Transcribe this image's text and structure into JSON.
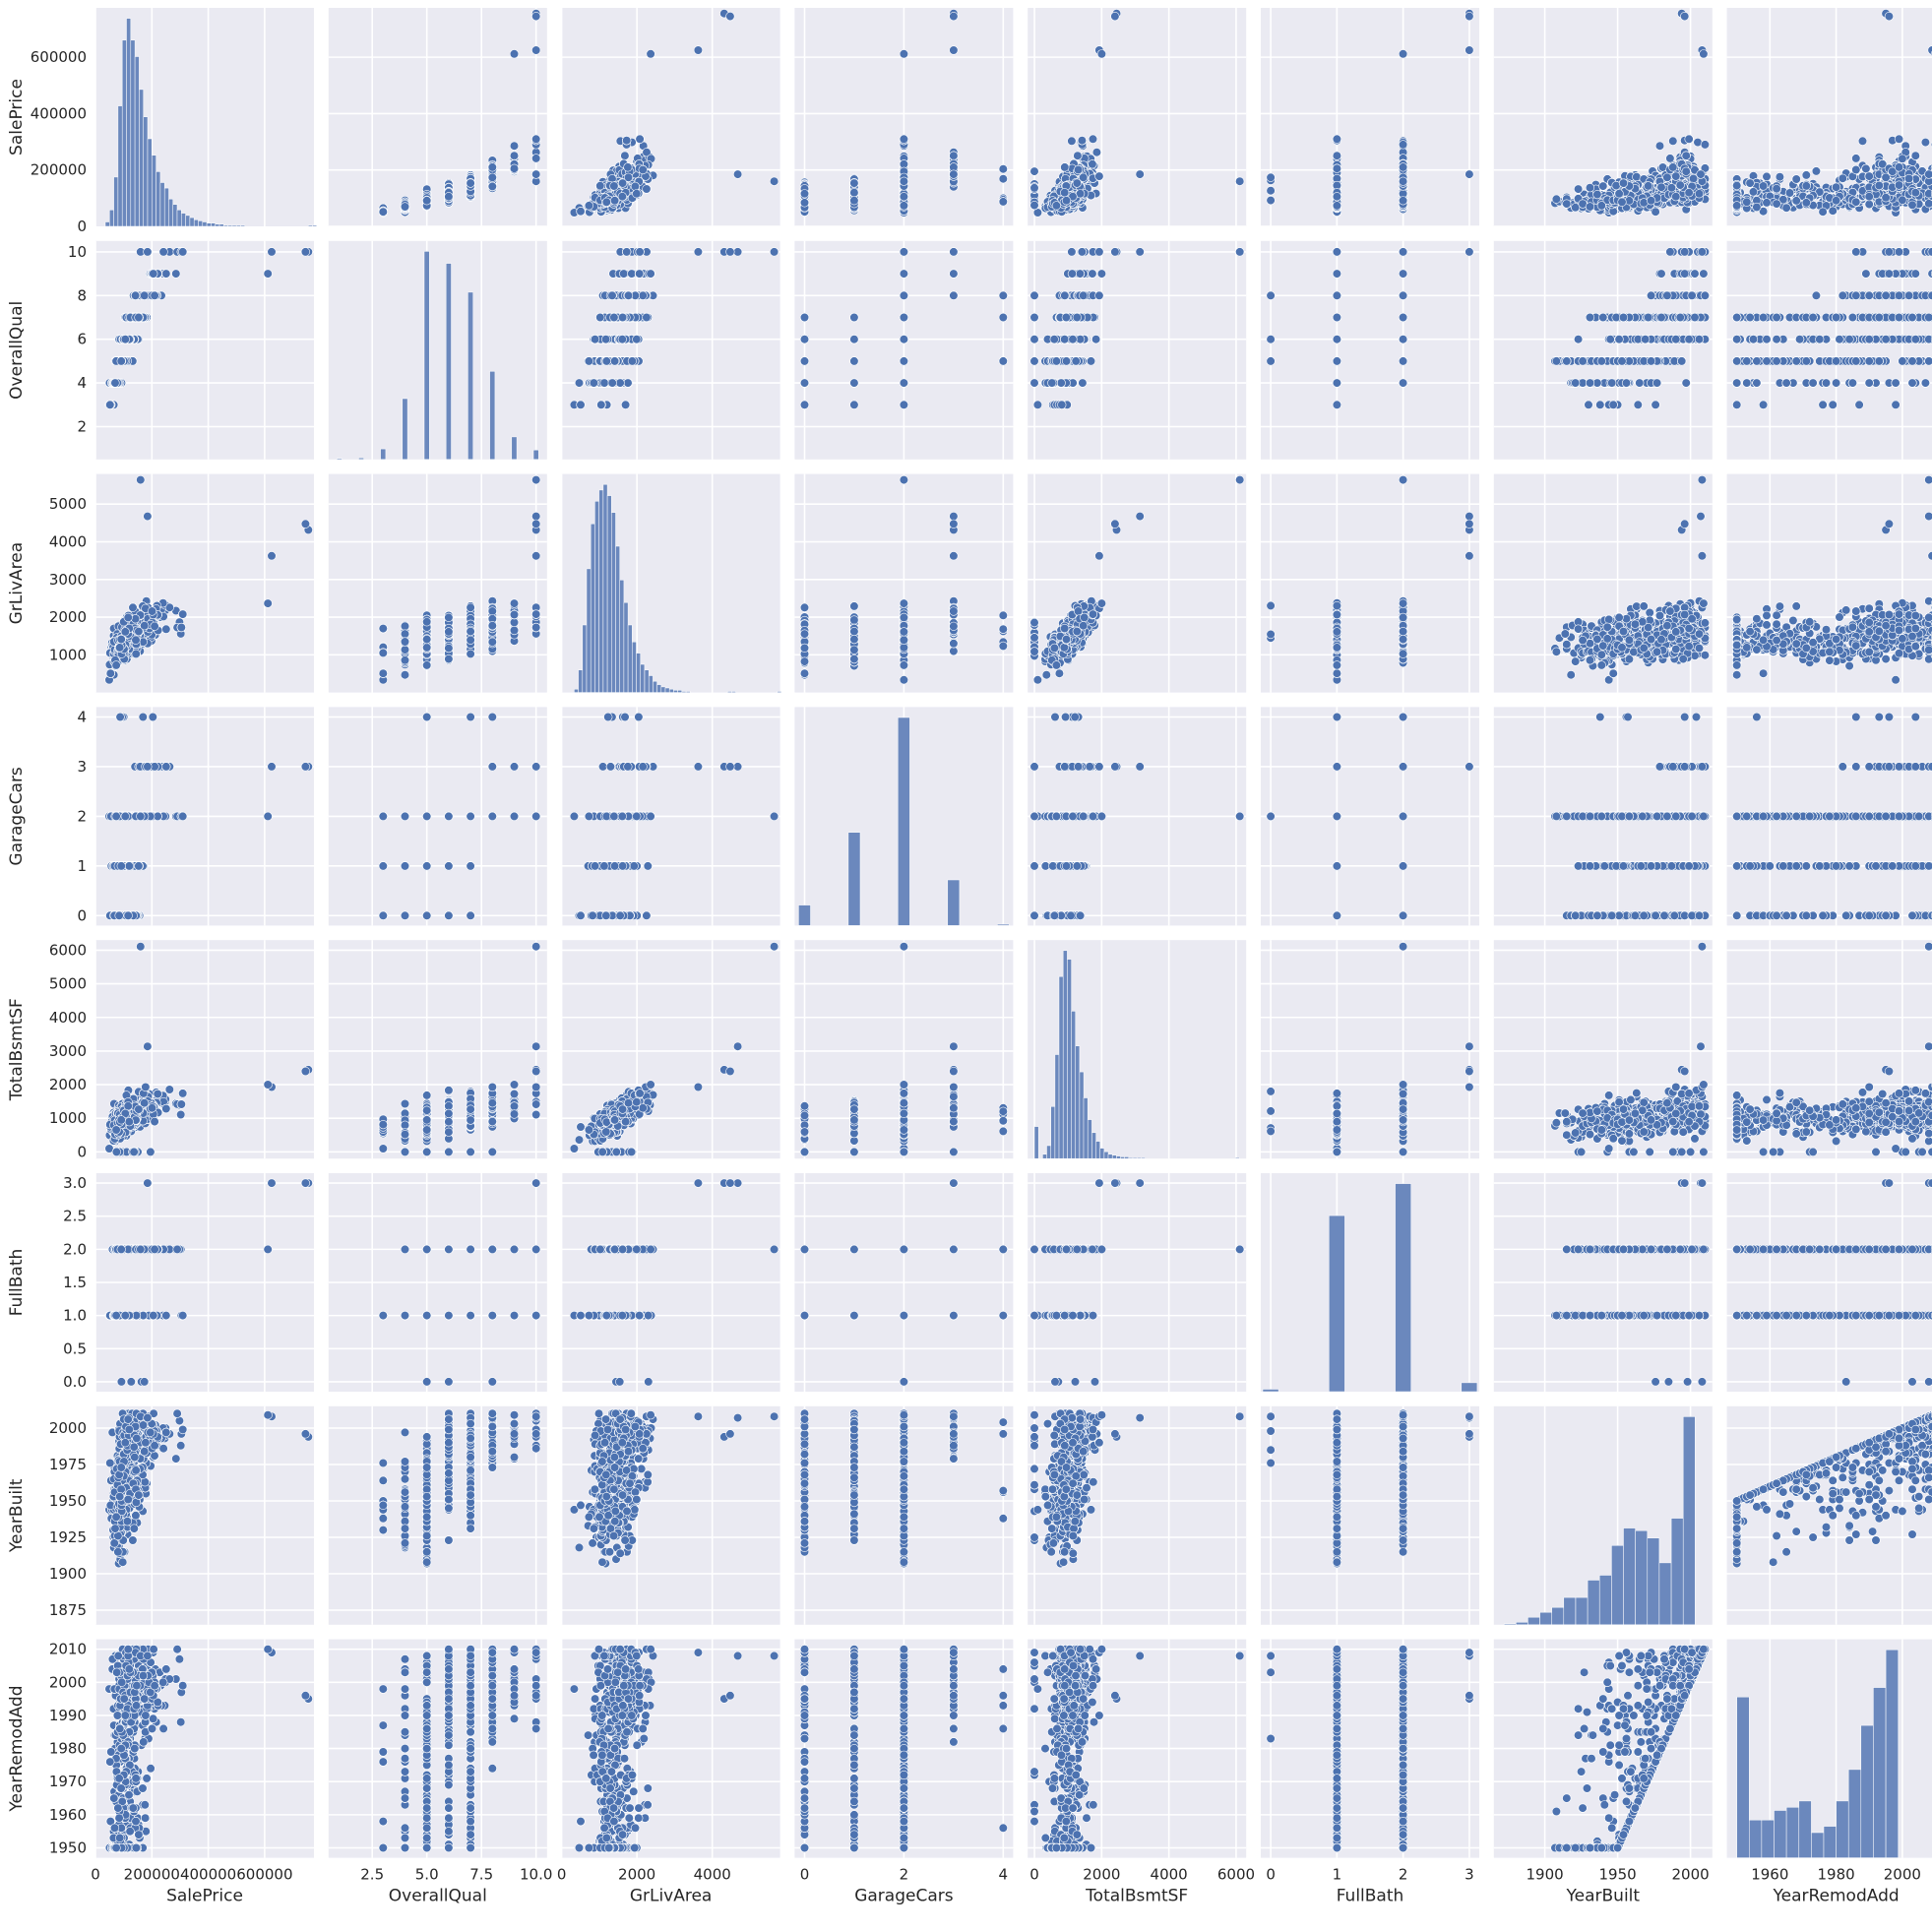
{
  "chart_data": {
    "type": "scatter",
    "kind": "pairplot",
    "style": {
      "background": "#eaeaf2",
      "grid_color": "#ffffff",
      "marker_color": "#4c72b0",
      "marker_edge": "#ffffff",
      "bar_color": "#6b88bd",
      "grid": true
    },
    "variables": [
      {
        "name": "SalePrice",
        "range": [
          0,
          775000
        ],
        "ticks": [
          0,
          200000,
          400000,
          600000
        ],
        "tick_labels": [
          "0",
          "200000",
          "400000",
          "600000"
        ]
      },
      {
        "name": "OverallQual",
        "range": [
          0.5,
          10.5
        ],
        "ticks": [
          2,
          4,
          6,
          8,
          10
        ],
        "tick_labels": [
          "2",
          "4",
          "6",
          "8",
          "10"
        ],
        "x_ticks": [
          2.5,
          5,
          7.5,
          10
        ],
        "x_tick_labels": [
          "2.5",
          "5.0",
          "7.5",
          "10.0"
        ]
      },
      {
        "name": "GrLivArea",
        "range": [
          0,
          5800
        ],
        "ticks": [
          1000,
          2000,
          3000,
          4000,
          5000
        ],
        "tick_labels": [
          "1000",
          "2000",
          "3000",
          "4000",
          "5000"
        ],
        "x_ticks": [
          0,
          2000,
          4000
        ],
        "x_tick_labels": [
          "0",
          "2000",
          "4000"
        ]
      },
      {
        "name": "GarageCars",
        "range": [
          -0.2,
          4.2
        ],
        "ticks": [
          0,
          1,
          2,
          3,
          4
        ],
        "tick_labels": [
          "0",
          "1",
          "2",
          "3",
          "4"
        ],
        "x_ticks": [
          0,
          2,
          4
        ],
        "x_tick_labels": [
          "0",
          "2",
          "4"
        ]
      },
      {
        "name": "TotalBsmtSF",
        "range": [
          -200,
          6300
        ],
        "ticks": [
          0,
          1000,
          2000,
          3000,
          4000,
          5000,
          6000
        ],
        "tick_labels": [
          "0",
          "1000",
          "2000",
          "3000",
          "4000",
          "5000",
          "6000"
        ],
        "x_ticks": [
          0,
          2000,
          4000,
          6000
        ],
        "x_tick_labels": [
          "0",
          "2000",
          "4000",
          "6000"
        ]
      },
      {
        "name": "FullBath",
        "range": [
          -0.15,
          3.15
        ],
        "ticks": [
          0,
          0.5,
          1,
          1.5,
          2,
          2.5,
          3
        ],
        "tick_labels": [
          "0.0",
          "0.5",
          "1.0",
          "1.5",
          "2.0",
          "2.5",
          "3.0"
        ],
        "x_ticks": [
          0,
          1,
          2,
          3
        ],
        "x_tick_labels": [
          "0",
          "1",
          "2",
          "3"
        ]
      },
      {
        "name": "YearBuilt",
        "range": [
          1865,
          2015
        ],
        "ticks": [
          1875,
          1900,
          1925,
          1950,
          1975,
          2000
        ],
        "tick_labels": [
          "1875",
          "1900",
          "1925",
          "1950",
          "1975",
          "2000"
        ],
        "x_ticks": [
          1900,
          1950,
          2000
        ],
        "x_tick_labels": [
          "1900",
          "1950",
          "2000"
        ]
      },
      {
        "name": "YearRemodAdd",
        "range": [
          1947,
          2013
        ],
        "ticks": [
          1950,
          1960,
          1970,
          1980,
          1990,
          2000,
          2010
        ],
        "tick_labels": [
          "1950",
          "1960",
          "1970",
          "1980",
          "1990",
          "2000",
          "2010"
        ],
        "x_ticks": [
          1960,
          1980,
          2000
        ],
        "x_tick_labels": [
          "1960",
          "1980",
          "2000"
        ]
      }
    ],
    "histograms": {
      "SalePrice": {
        "edges_start": 34900,
        "bin_width": 15000,
        "counts": [
          4,
          15,
          45,
          110,
          170,
          190,
          170,
          155,
          125,
          100,
          80,
          65,
          50,
          40,
          35,
          25,
          20,
          15,
          12,
          10,
          8,
          6,
          5,
          4,
          3,
          3,
          2,
          2,
          1,
          1,
          1,
          1,
          1,
          0,
          0,
          0,
          0,
          0,
          0,
          0,
          0,
          0,
          0,
          0,
          0,
          0,
          0,
          0,
          1,
          1
        ]
      },
      "OverallQual": {
        "categories": [
          1,
          2,
          3,
          4,
          5,
          6,
          7,
          8,
          9,
          10
        ],
        "counts": [
          2,
          3,
          20,
          116,
          397,
          374,
          319,
          168,
          43,
          18
        ]
      },
      "GrLivArea": {
        "edges_start": 334,
        "bin_width": 110,
        "counts": [
          3,
          20,
          60,
          110,
          150,
          170,
          180,
          185,
          175,
          160,
          130,
          100,
          80,
          60,
          45,
          35,
          25,
          20,
          15,
          10,
          7,
          5,
          4,
          3,
          2,
          2,
          1,
          1,
          0,
          0,
          0,
          0,
          0,
          0,
          0,
          0,
          0,
          1,
          1,
          0,
          0,
          0,
          0,
          0,
          0,
          0,
          0,
          0,
          0,
          1
        ]
      },
      "GarageCars": {
        "categories": [
          0,
          1,
          2,
          3,
          4
        ],
        "counts": [
          81,
          369,
          824,
          181,
          5
        ]
      },
      "TotalBsmtSF": {
        "edges_start": 0,
        "bin_width": 122,
        "counts": [
          37,
          0,
          5,
          15,
          60,
          120,
          210,
          240,
          230,
          170,
          130,
          100,
          70,
          45,
          30,
          20,
          12,
          8,
          5,
          4,
          3,
          2,
          2,
          1,
          1,
          1,
          1,
          0,
          0,
          0,
          0,
          0,
          0,
          0,
          0,
          0,
          0,
          0,
          0,
          0,
          0,
          0,
          0,
          0,
          0,
          0,
          0,
          0,
          0,
          1
        ]
      },
      "FullBath": {
        "categories": [
          0,
          1,
          2,
          3
        ],
        "counts": [
          9,
          650,
          768,
          33
        ]
      },
      "YearBuilt": {
        "edges_start": 1872,
        "bin_width": 8.2,
        "counts": [
          2,
          5,
          15,
          25,
          35,
          55,
          55,
          90,
          100,
          160,
          195,
          190,
          175,
          125,
          215,
          420
        ]
      },
      "YearRemodAdd": {
        "edges_start": 1950,
        "bin_width": 3.75,
        "counts": [
          255,
          60,
          60,
          75,
          80,
          90,
          40,
          50,
          90,
          140,
          210,
          270,
          330
        ]
      }
    }
  }
}
